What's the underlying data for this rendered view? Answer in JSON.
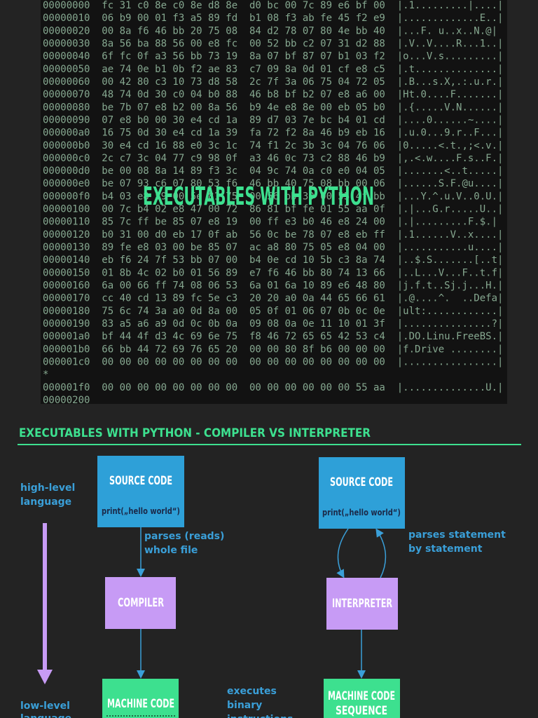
{
  "hexdump": {
    "lines": [
      "00000000  fc 31 c0 8e c0 8e d8 8e  d0 bc 00 7c 89 e6 bf 00  |.1.........|....|",
      "00000010  06 b9 00 01 f3 a5 89 fd  b1 08 f3 ab fe 45 f2 e9  |.............E..|",
      "00000020  00 8a f6 46 bb 20 75 08  84 d2 78 07 80 4e bb 40  |...F. u..x..N.@|",
      "00000030  8a 56 ba 88 56 00 e8 fc  00 52 bb c2 07 31 d2 88  |.V..V....R...1..|",
      "00000040  6f fc 0f a3 56 bb 73 19  8a 07 bf 87 07 b1 03 f2  |o...V.s.........|",
      "00000050  ae 74 0e b1 0b f2 ae 83  c7 09 8a 0d 01 cf e8 c5  |.t..............|",
      "00000060  00 42 80 c3 10 73 d8 58  2c 7f 3a 06 75 04 72 05  |.B...s.X,.:.u.r.|",
      "00000070  48 74 0d 30 c0 04 b0 88  46 b8 bf b2 07 e8 a6 00  |Ht.0....F.......|",
      "00000080  be 7b 07 e8 b2 00 8a 56  b9 4e e8 8e 00 eb 05 b0  |.{.....V.N......|",
      "00000090  07 e8 b0 00 30 e4 cd 1a  89 d7 03 7e bc b4 01 cd  |....0......~....|",
      "000000a0  16 75 0d 30 e4 cd 1a 39  fa 72 f2 8a 46 b9 eb 16  |.u.0...9.r..F...|",
      "000000b0  30 e4 cd 16 88 e0 3c 1c  74 f1 2c 3b 3c 04 76 06  |0.....<.t.,;<.v.|",
      "000000c0  2c c7 3c 04 77 c9 98 0f  a3 46 0c 73 c2 88 46 b9  |,.<.w....F.s..F.|",
      "000000d0  be 00 08 8a 14 89 f3 3c  04 9c 74 0a c0 e0 04 05  |.......<..t.....|",
      "000000e0  be 07 93 c6 07 80 53 f6  46 bb 40 75 08 bb 00 06  |......S.F.@u....|",
      "000000f0  b4 03 e8 59 00 5e 81 75  00 56 bb 30 00 55 4f bb  |...Y.^.u.V..0.U.|",
      "00000100  00 7c b4 02 e8 47 00 72  86 81 bf fe 01 55 aa 0f  |.|...G.r.....U..|",
      "00000110  85 7c ff be 85 07 e8 19  00 ff e3 b0 46 e8 24 00  |.|.........F.$.|",
      "00000120  b0 31 00 d0 eb 17 0f ab  56 0c be 78 07 e8 eb ff  |.1......V..x....|",
      "00000130  89 fe e8 03 00 be 85 07  ac a8 80 75 05 e8 04 00  |...........u....|",
      "00000140  eb f6 24 7f 53 bb 07 00  b4 0e cd 10 5b c3 8a 74  |..$.S.......[..t|",
      "00000150  01 8b 4c 02 b0 01 56 89  e7 f6 46 bb 80 74 13 66  |..L...V...F..t.f|",
      "00000160  6a 00 66 ff 74 08 06 53  6a 01 6a 10 89 e6 48 80  |j.f.t..Sj.j...H.|",
      "00000170  cc 40 cd 13 89 fc 5e c3  20 20 a0 0a 44 65 66 61  |.@....^.  ..Defa|",
      "00000180  75 6c 74 3a a0 0d 8a 00  05 0f 01 06 07 0b 0c 0e  |ult:............|",
      "00000190  83 a5 a6 a9 0d 0c 0b 0a  09 08 0a 0e 11 10 01 3f  |...............?|",
      "000001a0  bf 44 4f d3 4c 69 6e 75  f8 46 72 65 65 42 53 c4  |.DO.Linu.FreeBS.|",
      "000001b0  66 bb 44 72 69 76 65 20  00 00 80 8f b6 00 00 00  |f.Drive ........|",
      "000001c0  00 00 00 00 00 00 00 00  00 00 00 00 00 00 00 00  |................|",
      "*",
      "000001f0  00 00 00 00 00 00 00 00  00 00 00 00 00 00 55 aa  |..............U.|",
      "00000200"
    ]
  },
  "overlay_title": "EXECUTABLES WITH PYTHON",
  "section_title": "EXECUTABLES WITH PYTHON - COMPILER VS INTERPRETER",
  "level": {
    "top": [
      "high-level",
      "language"
    ],
    "bottom": [
      "low-level",
      "language"
    ]
  },
  "compiler": {
    "source_title": "SOURCE CODE",
    "source_code": "print(„hello world“)",
    "step": [
      "parses (reads)",
      "whole file"
    ],
    "processor": "COMPILER",
    "output": [
      "MACHINE CODE"
    ],
    "run": [
      "executes",
      "binary",
      "instructions"
    ]
  },
  "interpreter": {
    "source_title": "SOURCE CODE",
    "source_code": "print(„hello world“)",
    "step": [
      "parses statement",
      "by statement"
    ],
    "processor": "INTERPRETER",
    "output": [
      "MACHINE CODE",
      "SEQUENCE"
    ]
  }
}
